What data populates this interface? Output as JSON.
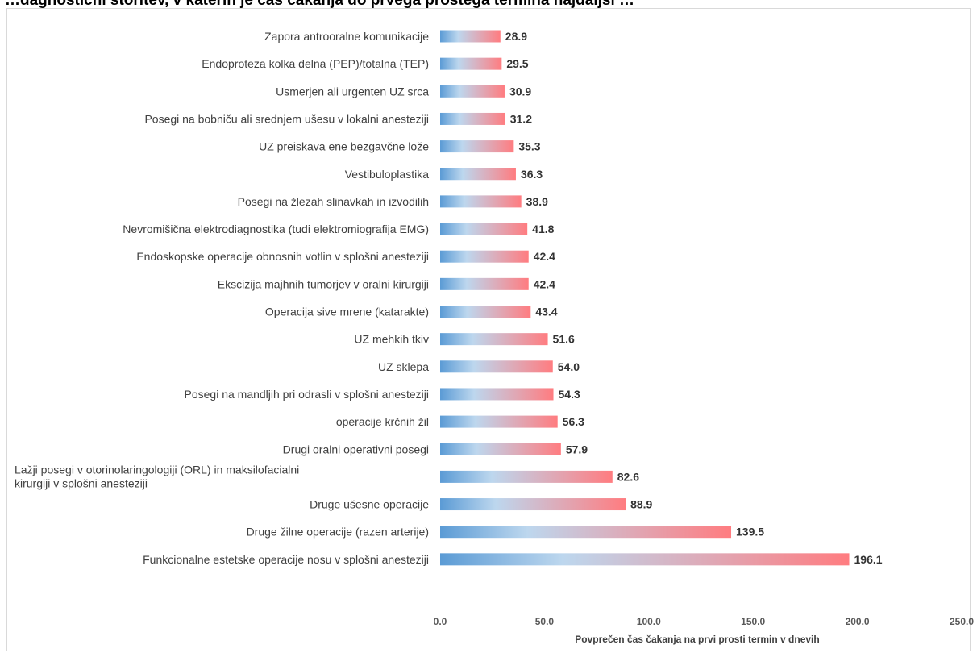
{
  "chart_data": {
    "type": "bar",
    "orientation": "horizontal",
    "title": "…dagnostični storitev, v katerih je čas čakanja do prvega prostega termina najdaljši …",
    "xlabel": "Povprečen čas čakanja na prvi prosti termin v dnevih",
    "ylabel": "",
    "xlim": [
      0,
      250
    ],
    "xticks": [
      "0.0",
      "50.0",
      "100.0",
      "150.0",
      "200.0",
      "250.0"
    ],
    "grid": false,
    "legend": "none",
    "bar_gradient": [
      "#5b9bd5",
      "#bdd7ee",
      "#ff7c80"
    ],
    "categories": [
      "Zapora antrooralne komunikacije",
      "Endoproteza kolka delna (PEP)/totalna (TEP)",
      "Usmerjen ali urgenten UZ srca",
      "Posegi na bobniču ali srednjem ušesu v lokalni anesteziji",
      "UZ preiskava ene bezgavčne lože",
      "Vestibuloplastika",
      "Posegi na žlezah slinavkah in izvodilih",
      "Nevromišična elektrodiagnostika (tudi elektromiografija EMG)",
      "Endoskopske operacije obnosnih votlin v splošni anesteziji",
      "Ekscizija majhnih tumorjev v oralni kirurgiji",
      "Operacija sive mrene (katarakte)",
      "UZ mehkih tkiv",
      "UZ sklepa",
      "Posegi na mandljih pri odrasli v splošni anesteziji",
      "operacije krčnih žil",
      "Drugi oralni operativni posegi",
      "Lažji posegi v otorinolaringologiji (ORL) in maksilofacialni kirurgiji v splošni anesteziji",
      "Druge ušesne operacije",
      "Druge žilne operacije (razen arterije)",
      "Funkcionalne estetske operacije nosu v splošni anesteziji"
    ],
    "values": [
      28.9,
      29.5,
      30.9,
      31.2,
      35.3,
      36.3,
      38.9,
      41.8,
      42.4,
      42.4,
      43.4,
      51.6,
      54.0,
      54.3,
      56.3,
      57.9,
      82.6,
      88.9,
      139.5,
      196.1
    ],
    "value_labels": [
      "28.9",
      "29.5",
      "30.9",
      "31.2",
      "35.3",
      "36.3",
      "38.9",
      "41.8",
      "42.4",
      "42.4",
      "43.4",
      "51.6",
      "54.0",
      "54.3",
      "56.3",
      "57.9",
      "82.6",
      "88.9",
      "139.5",
      "196.1"
    ]
  }
}
